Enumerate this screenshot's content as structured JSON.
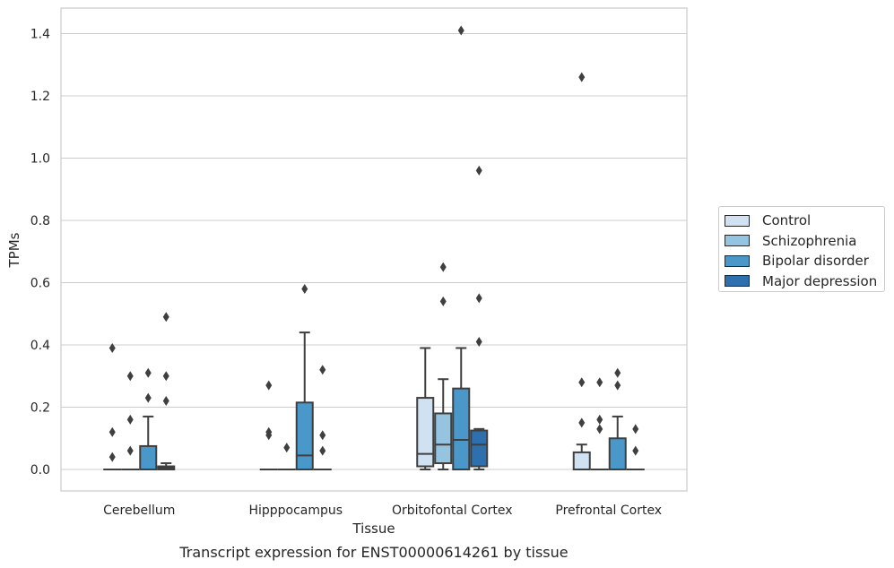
{
  "chart_data": {
    "type": "box",
    "title": "Transcript expression for ENST00000614261 by tissue",
    "xlabel": "Tissue",
    "ylabel": "TPMs",
    "ylim": [
      -0.07,
      1.48
    ],
    "yticks": [
      "0.0",
      "0.2",
      "0.4",
      "0.6",
      "0.8",
      "1.0",
      "1.2",
      "1.4"
    ],
    "ytick_values": [
      0,
      0.2,
      0.4,
      0.6,
      0.8,
      1.0,
      1.2,
      1.4
    ],
    "grid": "horizontal",
    "legend_position": "right",
    "categories": [
      "Cerebellum",
      "Hipppocampus",
      "Orbitofontal Cortex",
      "Prefrontal Cortex"
    ],
    "series": [
      {
        "name": "Control",
        "color": "#d0e1f2",
        "boxes": [
          {
            "q1": 0,
            "median": 0,
            "q3": 0,
            "whislo": 0,
            "whishi": 0,
            "fliers": [
              0.39,
              0.12,
              0.04
            ]
          },
          {
            "q1": 0,
            "median": 0,
            "q3": 0,
            "whislo": 0,
            "whishi": 0,
            "fliers": [
              0.27,
              0.12,
              0.11
            ]
          },
          {
            "q1": 0.01,
            "median": 0.05,
            "q3": 0.23,
            "whislo": 0,
            "whishi": 0.39,
            "fliers": []
          },
          {
            "q1": 0,
            "median": 0,
            "q3": 0.055,
            "whislo": 0,
            "whishi": 0.08,
            "fliers": [
              1.26,
              0.28,
              0.15
            ]
          }
        ]
      },
      {
        "name": "Schizophrenia",
        "color": "#94c4df",
        "boxes": [
          {
            "q1": 0,
            "median": 0,
            "q3": 0,
            "whislo": 0,
            "whishi": 0,
            "fliers": [
              0.3,
              0.16,
              0.06
            ]
          },
          {
            "q1": 0,
            "median": 0,
            "q3": 0,
            "whislo": 0,
            "whishi": 0,
            "fliers": [
              0.07
            ]
          },
          {
            "q1": 0.02,
            "median": 0.08,
            "q3": 0.18,
            "whislo": 0,
            "whishi": 0.29,
            "fliers": [
              0.65,
              0.54
            ]
          },
          {
            "q1": 0,
            "median": 0,
            "q3": 0,
            "whislo": 0,
            "whishi": 0,
            "fliers": [
              0.28,
              0.16,
              0.13
            ]
          }
        ]
      },
      {
        "name": "Bipolar disorder",
        "color": "#4a98c9",
        "boxes": [
          {
            "q1": 0,
            "median": 0,
            "q3": 0.075,
            "whislo": 0,
            "whishi": 0.17,
            "fliers": [
              0.31,
              0.23
            ]
          },
          {
            "q1": 0,
            "median": 0.045,
            "q3": 0.215,
            "whislo": 0,
            "whishi": 0.44,
            "fliers": [
              0.58
            ]
          },
          {
            "q1": 0,
            "median": 0.095,
            "q3": 0.26,
            "whislo": 0,
            "whishi": 0.39,
            "fliers": [
              1.41
            ]
          },
          {
            "q1": 0,
            "median": 0,
            "q3": 0.1,
            "whislo": 0,
            "whishi": 0.17,
            "fliers": [
              0.31,
              0.27
            ]
          }
        ]
      },
      {
        "name": "Major depression",
        "color": "#2e6fad",
        "boxes": [
          {
            "q1": 0,
            "median": 0.005,
            "q3": 0.01,
            "whislo": 0,
            "whishi": 0.02,
            "fliers": [
              0.49,
              0.3,
              0.22
            ]
          },
          {
            "q1": 0,
            "median": 0,
            "q3": 0,
            "whislo": 0,
            "whishi": 0,
            "fliers": [
              0.32,
              0.11,
              0.06
            ]
          },
          {
            "q1": 0.01,
            "median": 0.08,
            "q3": 0.125,
            "whislo": 0,
            "whishi": 0.13,
            "fliers": [
              0.96,
              0.55,
              0.41
            ]
          },
          {
            "q1": 0,
            "median": 0,
            "q3": 0,
            "whislo": 0,
            "whishi": 0,
            "fliers": [
              0.13,
              0.06
            ]
          }
        ]
      }
    ]
  }
}
